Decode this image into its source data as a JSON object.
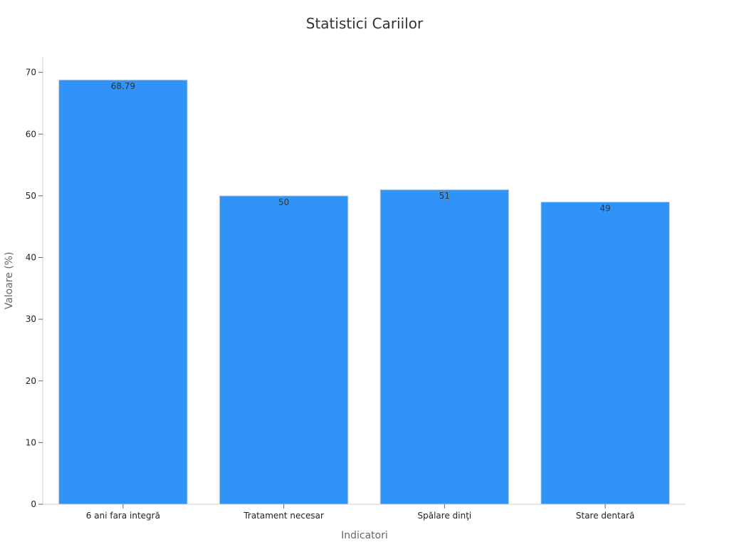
{
  "chart_data": {
    "type": "bar",
    "title": "Statistici Cariilor",
    "xlabel": "Indicatori",
    "ylabel": "Valoare (%)",
    "categories": [
      "6 ani fara integră",
      "Tratament necesar",
      "Spălare dinţi",
      "Stare dentară"
    ],
    "values": [
      68.79,
      50,
      51,
      49
    ],
    "value_labels": [
      "68.79",
      "50",
      "51",
      "49"
    ],
    "ylim": [
      0,
      72.5
    ],
    "yticks": [
      0,
      10,
      20,
      30,
      40,
      50,
      60,
      70
    ],
    "grid": false,
    "legend": "none",
    "bar_color": "#2f93f8"
  }
}
